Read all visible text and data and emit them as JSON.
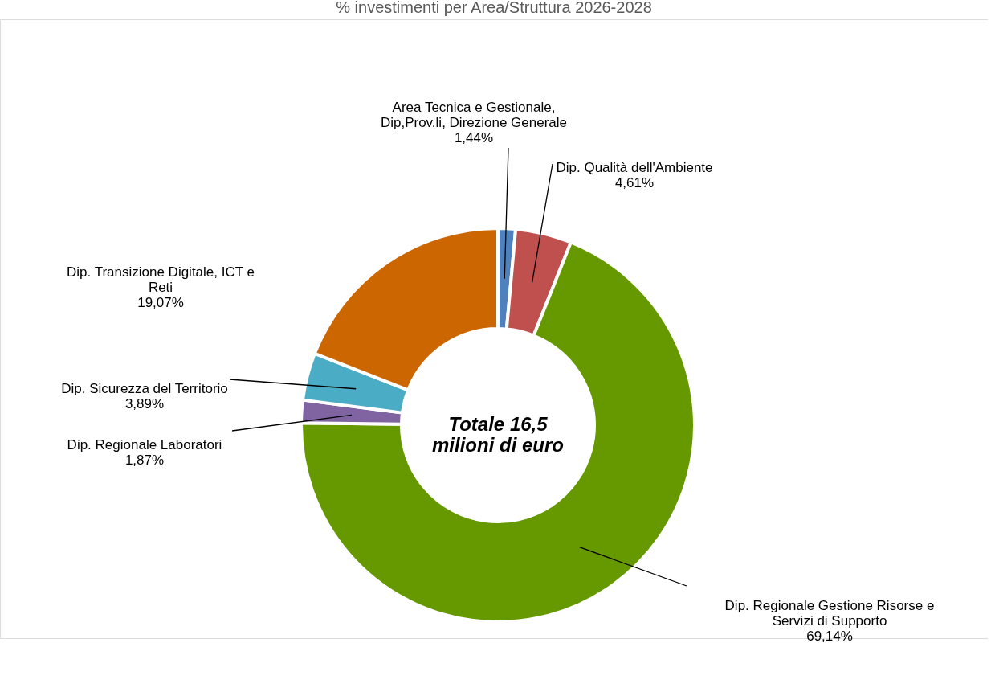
{
  "chart_data": {
    "type": "donut",
    "title": "% investimenti per Area/Struttura 2026-2028",
    "categories": [
      "Area Tecnica e Gestionale, Dip,Prov.li, Direzione Generale",
      "Dip. Qualità dell'Ambiente",
      "Dip. Regionale Gestione Risorse e Servizi di Supporto",
      "Dip. Regionale Laboratori",
      "Dip. Sicurezza del Territorio",
      "Dip. Transizione Digitale, ICT e Reti"
    ],
    "values": [
      1.44,
      4.61,
      69.14,
      1.87,
      3.89,
      19.07
    ],
    "value_labels": [
      "1,44%",
      "4,61%",
      "69,14%",
      "1,87%",
      "3,89%",
      "19,07%"
    ],
    "colors": [
      "#4f81bd",
      "#c0504d",
      "#669900",
      "#8064a2",
      "#4bacc6",
      "#cc6600"
    ],
    "annotations": [
      "Totale 16,5 milioni di euro"
    ],
    "legend": false
  }
}
